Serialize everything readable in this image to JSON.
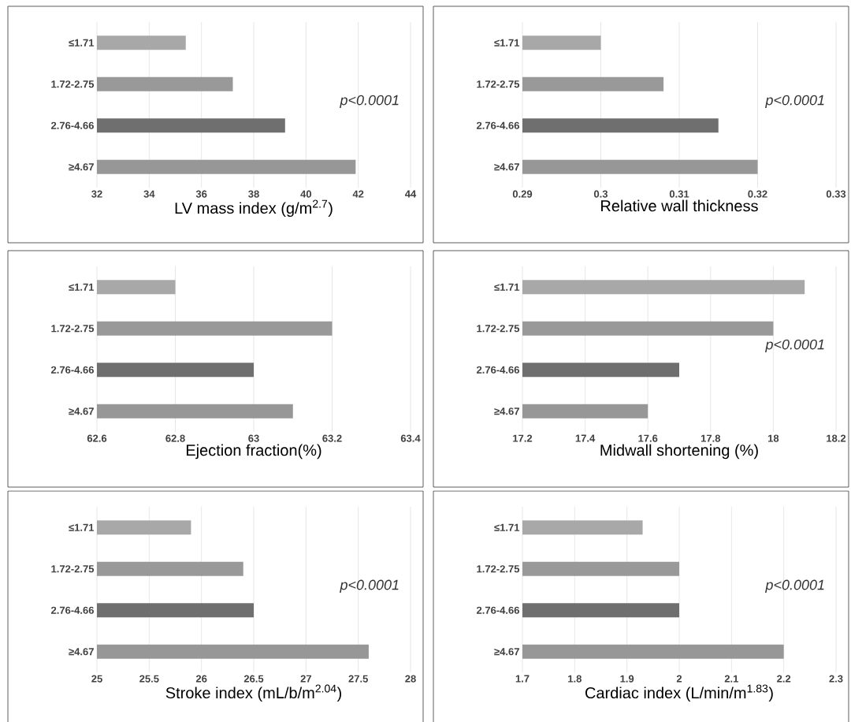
{
  "chart_data": [
    {
      "type": "bar",
      "orientation": "horizontal",
      "categories": [
        "≤1.71",
        "1.72-2.75",
        "2.76-4.66",
        "≥4.67"
      ],
      "values": [
        35.4,
        37.2,
        39.2,
        41.9
      ],
      "colors": [
        "#a8a8a8",
        "#999999",
        "#6f6f6f",
        "#979797"
      ],
      "xlabel": "LV mass index (g/m$^{2.7}$)",
      "xlim": [
        32,
        44
      ],
      "xticks": [
        32,
        34,
        36,
        38,
        40,
        42,
        44
      ],
      "grid": "x",
      "annotations": [
        "p<0.0001"
      ]
    },
    {
      "type": "bar",
      "orientation": "horizontal",
      "categories": [
        "≤1.71",
        "1.72-2.75",
        "2.76-4.66",
        "≥4.67"
      ],
      "values": [
        0.3,
        0.308,
        0.315,
        0.32
      ],
      "colors": [
        "#a8a8a8",
        "#999999",
        "#6f6f6f",
        "#979797"
      ],
      "xlabel": "Relative wall thickness",
      "xlim": [
        0.29,
        0.33
      ],
      "xticks": [
        0.29,
        0.3,
        0.31,
        0.32,
        0.33
      ],
      "grid": "x",
      "annotations": [
        "p<0.0001"
      ]
    },
    {
      "type": "bar",
      "orientation": "horizontal",
      "categories": [
        "≤1.71",
        "1.72-2.75",
        "2.76-4.66",
        "≥4.67"
      ],
      "values": [
        62.8,
        63.2,
        63.0,
        63.1
      ],
      "colors": [
        "#a8a8a8",
        "#999999",
        "#6f6f6f",
        "#979797"
      ],
      "xlabel": "Ejection fraction(%)",
      "xlim": [
        62.6,
        63.4
      ],
      "xticks": [
        62.6,
        62.8,
        63,
        63.2,
        63.4
      ],
      "grid": "x"
    },
    {
      "type": "bar",
      "orientation": "horizontal",
      "categories": [
        "≤1.71",
        "1.72-2.75",
        "2.76-4.66",
        "≥4.67"
      ],
      "values": [
        18.1,
        18.0,
        17.7,
        17.6
      ],
      "colors": [
        "#a8a8a8",
        "#999999",
        "#6f6f6f",
        "#979797"
      ],
      "xlabel": "Midwall shortening (%)",
      "xlim": [
        17.2,
        18.2
      ],
      "xticks": [
        17.2,
        17.4,
        17.6,
        17.8,
        18,
        18.2
      ],
      "grid": "x",
      "annotations": [
        "p<0.0001"
      ]
    },
    {
      "type": "bar",
      "orientation": "horizontal",
      "categories": [
        "≤1.71",
        "1.72-2.75",
        "2.76-4.66",
        "≥4.67"
      ],
      "values": [
        25.9,
        26.4,
        26.5,
        27.6
      ],
      "colors": [
        "#a8a8a8",
        "#999999",
        "#6f6f6f",
        "#979797"
      ],
      "xlabel": "Stroke index (mL/b/m$^{2.04}$)",
      "xlim": [
        25,
        28
      ],
      "xticks": [
        25,
        25.5,
        26,
        26.5,
        27,
        27.5,
        28
      ],
      "grid": "x",
      "annotations": [
        "p<0.0001"
      ]
    },
    {
      "type": "bar",
      "orientation": "horizontal",
      "categories": [
        "≤1.71",
        "1.72-2.75",
        "2.76-4.66",
        "≥4.67"
      ],
      "values": [
        1.93,
        2.0,
        2.0,
        2.2
      ],
      "colors": [
        "#a8a8a8",
        "#999999",
        "#6f6f6f",
        "#979797"
      ],
      "xlabel": "Cardiac index (L/min/m$^{1.83}$)",
      "xlim": [
        1.7,
        2.3
      ],
      "xticks": [
        1.7,
        1.8,
        1.9,
        2,
        2.1,
        2.2,
        2.3
      ],
      "grid": "x",
      "annotations": [
        "p<0.0001"
      ]
    }
  ]
}
